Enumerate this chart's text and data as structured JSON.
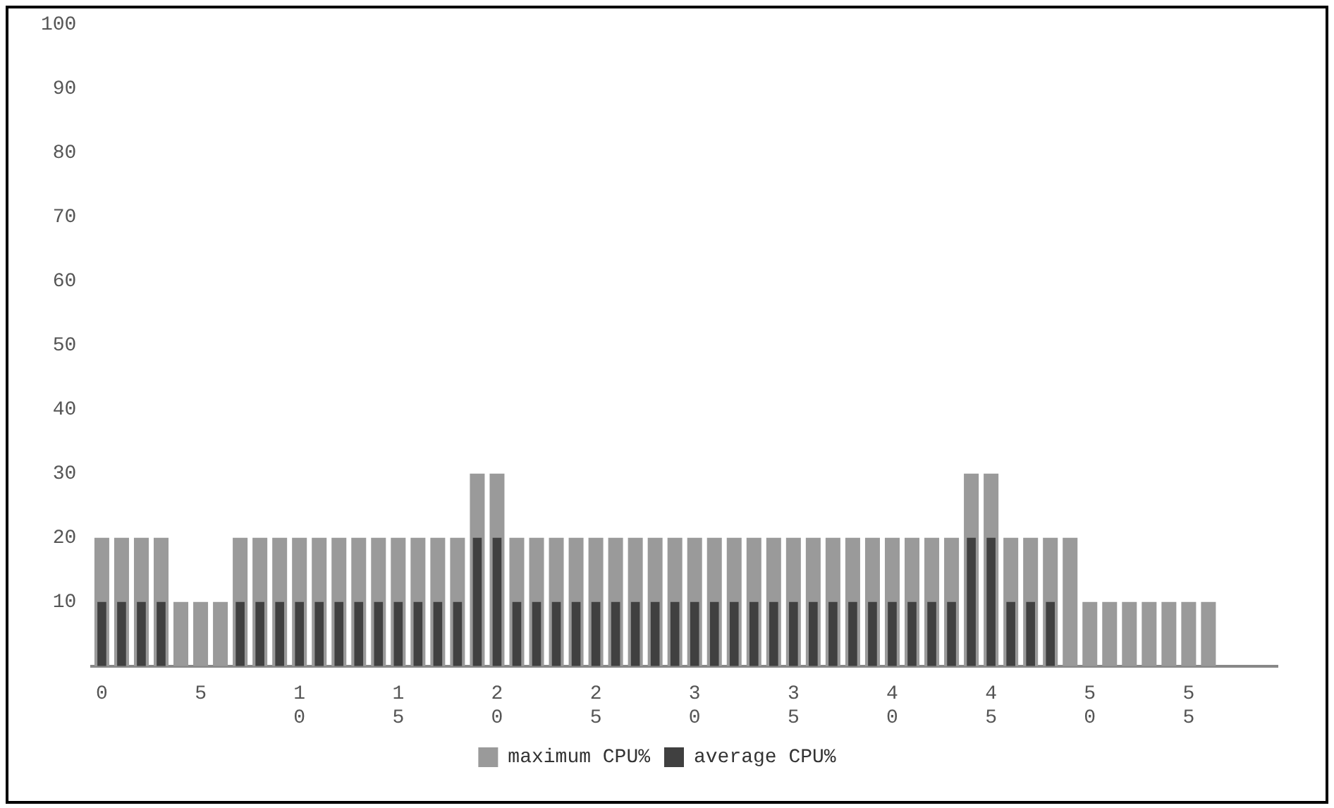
{
  "chart_data": {
    "type": "bar",
    "x": [
      0,
      1,
      2,
      3,
      4,
      5,
      6,
      7,
      8,
      9,
      10,
      11,
      12,
      13,
      14,
      15,
      16,
      17,
      18,
      19,
      20,
      21,
      22,
      23,
      24,
      25,
      26,
      27,
      28,
      29,
      30,
      31,
      32,
      33,
      34,
      35,
      36,
      37,
      38,
      39,
      40,
      41,
      42,
      43,
      44,
      45,
      46,
      47,
      48,
      49,
      50,
      51,
      52,
      53,
      54,
      55,
      56
    ],
    "series": [
      {
        "name": "maximum CPU%",
        "color": "#9a9a9a",
        "values": [
          20,
          20,
          20,
          20,
          10,
          10,
          10,
          20,
          20,
          20,
          20,
          20,
          20,
          20,
          20,
          20,
          20,
          20,
          20,
          30,
          30,
          20,
          20,
          20,
          20,
          20,
          20,
          20,
          20,
          20,
          20,
          20,
          20,
          20,
          20,
          20,
          20,
          20,
          20,
          20,
          20,
          20,
          20,
          20,
          30,
          30,
          20,
          20,
          20,
          20,
          10,
          10,
          10,
          10,
          10,
          10,
          10
        ]
      },
      {
        "name": "average CPU%",
        "color": "#404040",
        "values": [
          10,
          10,
          10,
          10,
          null,
          null,
          null,
          10,
          10,
          10,
          10,
          10,
          10,
          10,
          10,
          10,
          10,
          10,
          10,
          20,
          20,
          10,
          10,
          10,
          10,
          10,
          10,
          10,
          10,
          10,
          10,
          10,
          10,
          10,
          10,
          10,
          10,
          10,
          10,
          10,
          10,
          10,
          10,
          10,
          20,
          20,
          10,
          10,
          10,
          null,
          null,
          null,
          null,
          null,
          null,
          null,
          null
        ]
      }
    ],
    "xlim": [
      -0.5,
      59.5
    ],
    "xticks": [
      0,
      5,
      10,
      15,
      20,
      25,
      30,
      35,
      40,
      45,
      50,
      55
    ],
    "ylim": [
      0,
      100
    ],
    "yticks": [
      10,
      20,
      30,
      40,
      50,
      60,
      70,
      80,
      90,
      100
    ],
    "legend": "bottom"
  }
}
